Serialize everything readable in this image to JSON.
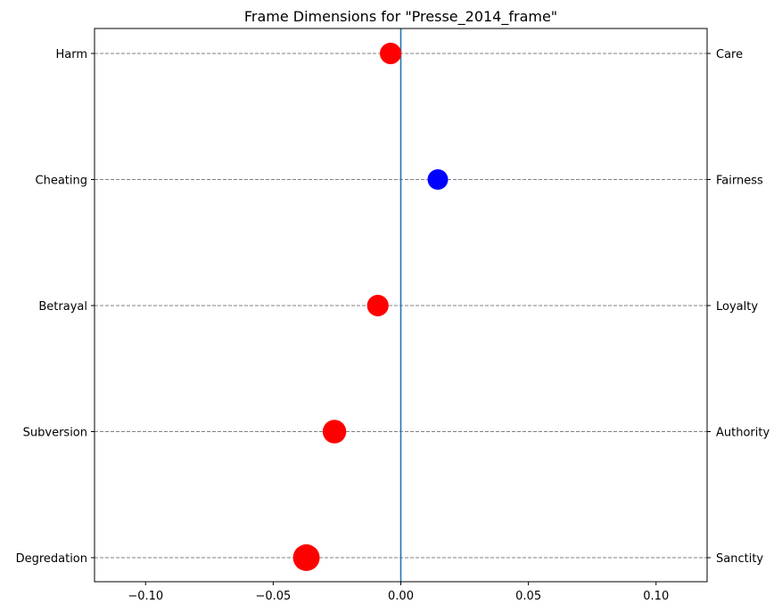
{
  "chart_data": {
    "type": "scatter",
    "title": "Frame Dimensions for \"Presse_2014_frame\"",
    "xlim": [
      -0.12,
      0.12
    ],
    "x_ticks": [
      -0.1,
      -0.05,
      0.0,
      0.05,
      0.1
    ],
    "x_tick_labels": [
      "−0.10",
      "−0.05",
      "0.00",
      "0.05",
      "0.10"
    ],
    "zero_line": 0.0,
    "grid": "horizontal dashed at each category",
    "dimensions": [
      {
        "left_label": "Harm",
        "right_label": "Care",
        "value": -0.004,
        "color": "#ff0000",
        "size": 1.05
      },
      {
        "left_label": "Cheating",
        "right_label": "Fairness",
        "value": 0.0145,
        "color": "#0000ff",
        "size": 1.0
      },
      {
        "left_label": "Betrayal",
        "right_label": "Loyalty",
        "value": -0.009,
        "color": "#ff0000",
        "size": 1.05
      },
      {
        "left_label": "Subversion",
        "right_label": "Authority",
        "value": -0.026,
        "color": "#ff0000",
        "size": 1.15
      },
      {
        "left_label": "Degredation",
        "right_label": "Sanctity",
        "value": -0.037,
        "color": "#ff0000",
        "size": 1.3
      }
    ]
  }
}
